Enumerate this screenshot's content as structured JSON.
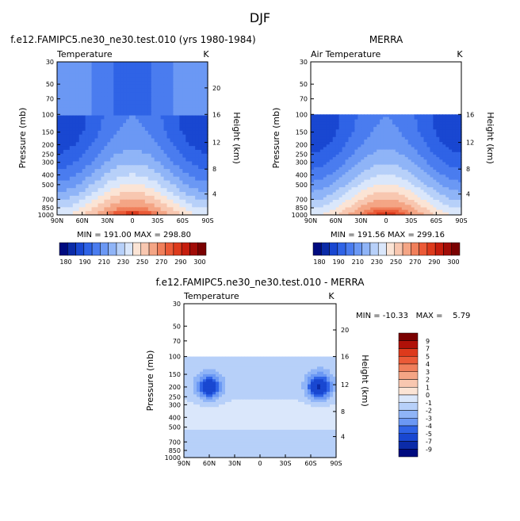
{
  "figure": {
    "title": "DJF"
  },
  "chart_data": [
    {
      "type": "heatmap",
      "title": "f.e12.FAMIPC5.ne30_ne30.test.010 (yrs 1980-1984)",
      "subtitle": "Temperature",
      "units": "K",
      "ylabel": "Pressure (mb)",
      "y2label": "Height (km)",
      "xticks": [
        "90N",
        "60N",
        "30N",
        "0",
        "30S",
        "60S",
        "90S"
      ],
      "yticks": [
        30,
        50,
        70,
        100,
        150,
        200,
        250,
        300,
        400,
        500,
        700,
        850,
        1000
      ],
      "y2ticks": [
        20,
        16,
        12,
        8,
        4
      ],
      "ylim": [
        30,
        1000
      ],
      "stats": "MIN = 191.00   MAX = 298.80",
      "min": 191.0,
      "max": 298.8,
      "valid_from_mb": 30,
      "colorbar": "abs"
    },
    {
      "type": "heatmap",
      "title": "MERRA",
      "subtitle": "Air Temperature",
      "units": "K",
      "ylabel": "Pressure (mb)",
      "y2label": "Height (km)",
      "xticks": [
        "90N",
        "60N",
        "30N",
        "0",
        "30S",
        "60S",
        "90S"
      ],
      "yticks": [
        30,
        50,
        70,
        100,
        150,
        200,
        250,
        300,
        400,
        500,
        700,
        850,
        1000
      ],
      "y2ticks": [
        16,
        12,
        8,
        4
      ],
      "ylim": [
        30,
        1000
      ],
      "stats": "MIN = 191.56   MAX = 299.16",
      "min": 191.56,
      "max": 299.16,
      "valid_from_mb": 100,
      "colorbar": "abs"
    },
    {
      "type": "heatmap",
      "title": "f.e12.FAMIPC5.ne30_ne30.test.010 - MERRA",
      "subtitle": "Temperature",
      "units": "K",
      "ylabel": "Pressure (mb)",
      "y2label": "Height (km)",
      "xticks": [
        "90N",
        "60N",
        "30N",
        "0",
        "30S",
        "60S",
        "90S"
      ],
      "yticks": [
        30,
        50,
        70,
        100,
        150,
        200,
        250,
        300,
        400,
        500,
        700,
        850,
        1000
      ],
      "y2ticks": [
        20,
        16,
        12,
        8,
        4
      ],
      "ylim": [
        30,
        1000
      ],
      "stats": "MIN = -10.33   MAX =    5.79",
      "min": -10.33,
      "max": 5.79,
      "valid_from_mb": 100,
      "colorbar": "diff"
    }
  ],
  "colorbar_abs": {
    "labels": [
      "180",
      "190",
      "210",
      "230",
      "250",
      "270",
      "290",
      "300"
    ],
    "colors": [
      "#000b7f",
      "#0b2ba8",
      "#1947d1",
      "#2f63e6",
      "#4a7cef",
      "#6b98f4",
      "#8fb4f7",
      "#b7d0f9",
      "#dae7fb",
      "#fbe4d5",
      "#f8c7b0",
      "#f4a585",
      "#f07f5b",
      "#eb5a37",
      "#dd3a1c",
      "#c51d0d",
      "#a10c07",
      "#7a0101"
    ]
  },
  "colorbar_diff": {
    "labels": [
      "9",
      "7",
      "5",
      "4",
      "3",
      "2",
      "1",
      "0",
      "-1",
      "-2",
      "-3",
      "-4",
      "-5",
      "-7",
      "-9"
    ],
    "colors": [
      "#7a0101",
      "#b01108",
      "#dd3a1c",
      "#eb5a37",
      "#f07f5b",
      "#f4a585",
      "#f8c7b0",
      "#fbe4d5",
      "#dae7fb",
      "#b7d0f9",
      "#8fb4f7",
      "#6b98f4",
      "#2f63e6",
      "#1947d1",
      "#0b2ba8",
      "#000b7f"
    ]
  }
}
